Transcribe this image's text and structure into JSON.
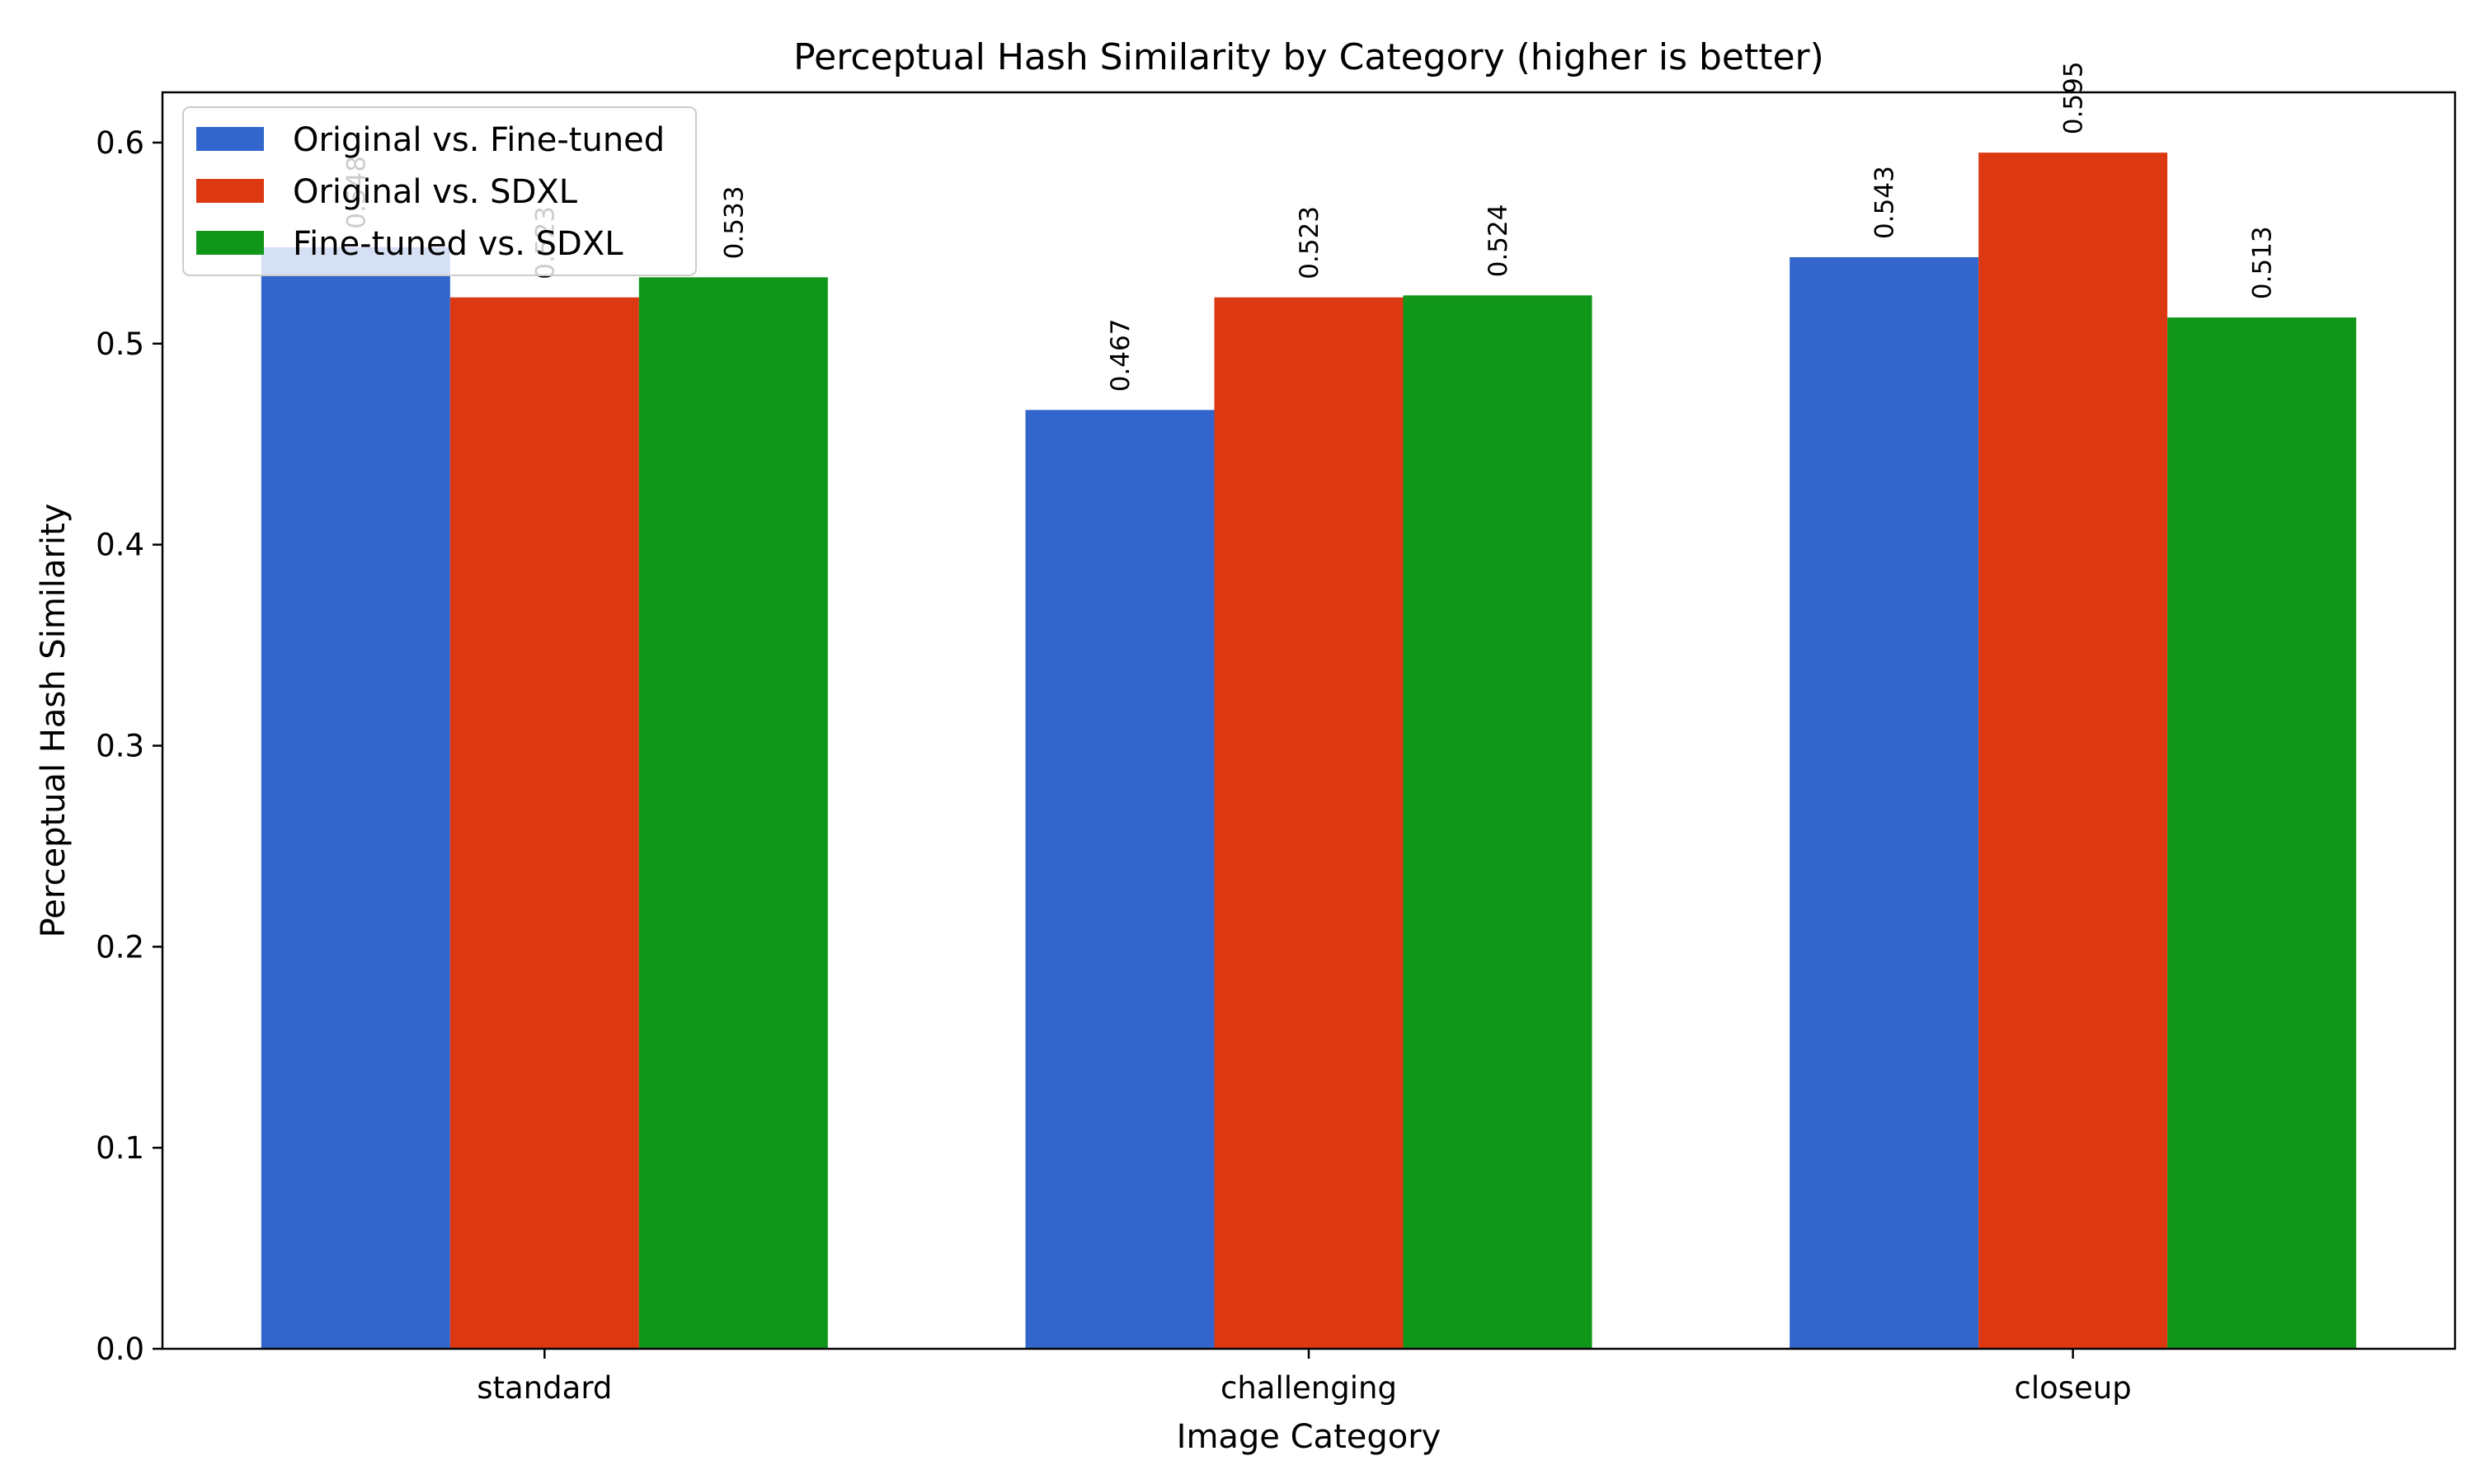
{
  "chart_data": {
    "type": "bar",
    "title": "Perceptual Hash Similarity by Category (higher is better)",
    "xlabel": "Image Category",
    "ylabel": "Perceptual Hash Similarity",
    "categories": [
      "standard",
      "challenging",
      "closeup"
    ],
    "ylim": [
      0,
      0.625
    ],
    "yticks": [
      "0.0",
      "0.1",
      "0.2",
      "0.3",
      "0.4",
      "0.5",
      "0.6"
    ],
    "grid": false,
    "legend_position": "top-left",
    "series": [
      {
        "name": "Original vs. Fine-tuned",
        "color": "#3366cc",
        "values": [
          0.548,
          0.467,
          0.543
        ],
        "labels": [
          "0.548",
          "0.467",
          "0.543"
        ]
      },
      {
        "name": "Original vs. SDXL",
        "color": "#dc3912",
        "values": [
          0.523,
          0.523,
          0.595
        ],
        "labels": [
          "0.523",
          "0.523",
          "0.595"
        ]
      },
      {
        "name": "Fine-tuned vs. SDXL",
        "color": "#109618",
        "values": [
          0.533,
          0.524,
          0.513
        ],
        "labels": [
          "0.533",
          "0.524",
          "0.513"
        ]
      }
    ]
  }
}
